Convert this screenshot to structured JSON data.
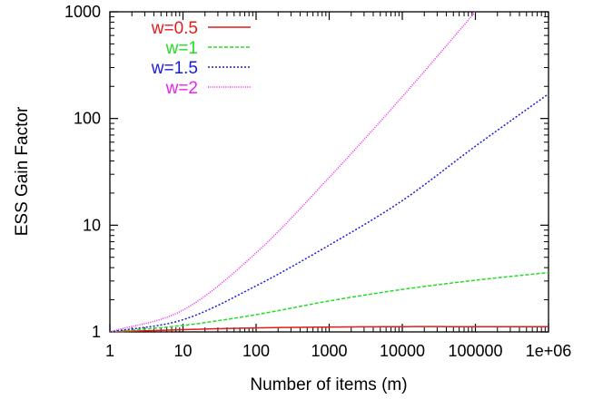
{
  "chart_data": {
    "type": "line",
    "title": "",
    "xlabel": "Number of items (m)",
    "ylabel": "ESS Gain Factor",
    "x_scale": "log",
    "y_scale": "log",
    "xlim": [
      1,
      1000000
    ],
    "ylim": [
      1,
      1000
    ],
    "x_ticks": [
      1,
      10,
      100,
      1000,
      10000,
      100000,
      1000000
    ],
    "x_tick_labels": [
      "1",
      "10",
      "100",
      "1000",
      "10000",
      "100000",
      "1e+06"
    ],
    "y_ticks": [
      1,
      10,
      100,
      1000
    ],
    "y_tick_labels": [
      "1",
      "10",
      "100",
      "1000"
    ],
    "grid": false,
    "legend_position": "top-left",
    "series": [
      {
        "name": "w=0.5",
        "color": "#e41a1c",
        "dash": "solid",
        "x": [
          1,
          10,
          100,
          1000,
          10000,
          100000,
          1000000
        ],
        "y": [
          1.0,
          1.05,
          1.09,
          1.11,
          1.12,
          1.12,
          1.12
        ]
      },
      {
        "name": "w=1",
        "color": "#22dd22",
        "dash": "dashed",
        "x": [
          1,
          10,
          100,
          1000,
          10000,
          100000,
          1000000
        ],
        "y": [
          1.0,
          1.15,
          1.45,
          1.95,
          2.5,
          3.05,
          3.6
        ]
      },
      {
        "name": "w=1.5",
        "color": "#1a1adf",
        "dash": "dotted",
        "x": [
          1,
          10,
          100,
          1000,
          10000,
          100000,
          1000000
        ],
        "y": [
          1.0,
          1.3,
          2.7,
          6.5,
          17,
          55,
          170
        ]
      },
      {
        "name": "w=2",
        "color": "#ee22ee",
        "dash": "fine-dotted",
        "x": [
          1,
          10,
          100,
          1000,
          10000,
          100000
        ],
        "y": [
          1.0,
          1.6,
          5.5,
          28,
          160,
          1000
        ]
      }
    ]
  }
}
